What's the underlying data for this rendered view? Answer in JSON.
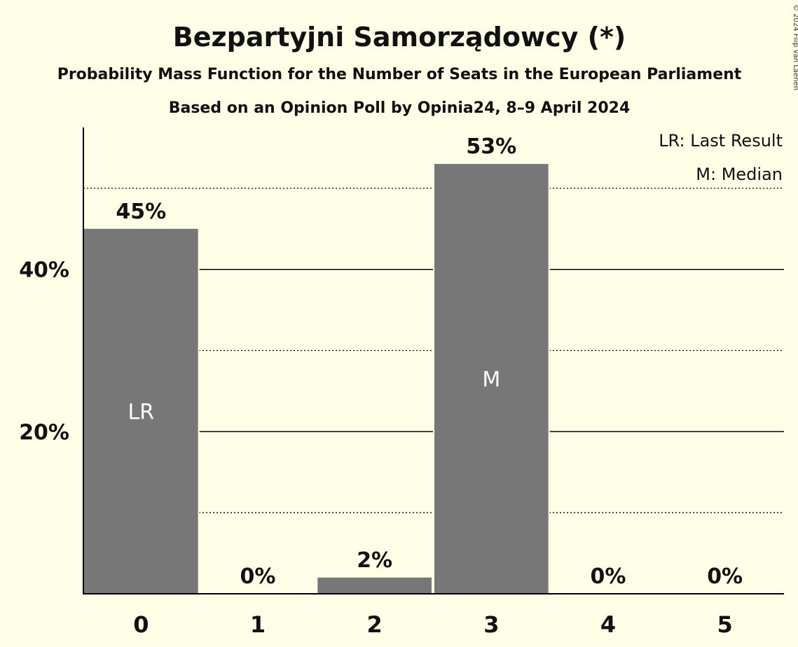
{
  "chart_data": {
    "type": "bar",
    "title": "Bezpartyjni Samorządowcy (*)",
    "subtitle": "Probability Mass Function for the Number of Seats in the European Parliament",
    "subtitle2": "Based on an Opinion Poll by Opinia24, 8–9 April 2024",
    "categories": [
      "0",
      "1",
      "2",
      "3",
      "4",
      "5"
    ],
    "values": [
      45,
      0,
      2,
      53,
      0,
      0
    ],
    "value_labels": [
      "45%",
      "0%",
      "2%",
      "53%",
      "0%",
      "0%"
    ],
    "inner_labels": [
      "LR",
      "",
      "",
      "M",
      "",
      ""
    ],
    "y_ticks": [
      {
        "value": 20,
        "label": "20%"
      },
      {
        "value": 40,
        "label": "40%"
      }
    ],
    "minor_gridlines": [
      10,
      30,
      50
    ],
    "ylim": [
      0,
      57.5
    ],
    "legend": [
      "LR: Last Result",
      "M: Median"
    ],
    "legend_position": "top-right",
    "bar_color": "#777777",
    "background_color": "#FFFEE6",
    "copyright": "© 2024 Filip van Laenen"
  }
}
